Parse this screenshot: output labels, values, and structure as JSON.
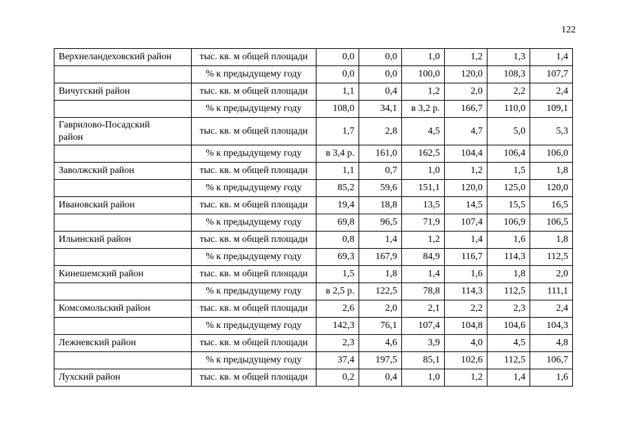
{
  "page_number": "122",
  "table": {
    "rows": [
      {
        "district": "Верхнеландеховский район",
        "measure": "тыс. кв. м общей площади",
        "values": [
          "0,0",
          "0,0",
          "1,0",
          "1,2",
          "1,3",
          "1,4"
        ]
      },
      {
        "district": "",
        "measure": "% к предыдущему году",
        "values": [
          "0,0",
          "0,0",
          "100,0",
          "120,0",
          "108,3",
          "107,7"
        ]
      },
      {
        "district": "Вичугский район",
        "measure": "тыс. кв. м общей площади",
        "values": [
          "1,1",
          "0,4",
          "1,2",
          "2,0",
          "2,2",
          "2,4"
        ]
      },
      {
        "district": "",
        "measure": "% к предыдущему году",
        "values": [
          "108,0",
          "34,1",
          "в 3,2 р.",
          "166,7",
          "110,0",
          "109,1"
        ]
      },
      {
        "district": "Гаврилово-Посадский\nрайон",
        "measure": "тыс. кв. м общей площади",
        "values": [
          "1,7",
          "2,8",
          "4,5",
          "4,7",
          "5,0",
          "5,3"
        ]
      },
      {
        "district": "",
        "measure": "% к предыдущему году",
        "values": [
          "в 3,4 р.",
          "161,0",
          "162,5",
          "104,4",
          "106,4",
          "106,0"
        ]
      },
      {
        "district": "Заволжский район",
        "measure": "тыс. кв. м общей площади",
        "values": [
          "1,1",
          "0,7",
          "1,0",
          "1,2",
          "1,5",
          "1,8"
        ]
      },
      {
        "district": "",
        "measure": "% к предыдущему году",
        "values": [
          "85,2",
          "59,6",
          "151,1",
          "120,0",
          "125,0",
          "120,0"
        ]
      },
      {
        "district": "Ивановский район",
        "measure": "тыс. кв. м общей площади",
        "values": [
          "19,4",
          "18,8",
          "13,5",
          "14,5",
          "15,5",
          "16,5"
        ]
      },
      {
        "district": "",
        "measure": "% к предыдущему году",
        "values": [
          "69,8",
          "96,5",
          "71,9",
          "107,4",
          "106,9",
          "106,5"
        ]
      },
      {
        "district": "Ильинский район",
        "measure": "тыс. кв. м общей площади",
        "values": [
          "0,8",
          "1,4",
          "1,2",
          "1,4",
          "1,6",
          "1,8"
        ]
      },
      {
        "district": "",
        "measure": "% к предыдущему году",
        "values": [
          "69,3",
          "167,9",
          "84,9",
          "116,7",
          "114,3",
          "112,5"
        ]
      },
      {
        "district": "Кинешемский район",
        "measure": "тыс. кв. м общей площади",
        "values": [
          "1,5",
          "1,8",
          "1,4",
          "1,6",
          "1,8",
          "2,0"
        ]
      },
      {
        "district": "",
        "measure": "% к предыдущему году",
        "values": [
          "в 2,5 р.",
          "122,5",
          "78,8",
          "114,3",
          "112,5",
          "111,1"
        ]
      },
      {
        "district": "Комсомольский район",
        "measure": "тыс. кв. м общей площади",
        "values": [
          "2,6",
          "2,0",
          "2,1",
          "2,2",
          "2,3",
          "2,4"
        ]
      },
      {
        "district": "",
        "measure": "% к предыдущему году",
        "values": [
          "142,3",
          "76,1",
          "107,4",
          "104,8",
          "104,6",
          "104,3"
        ]
      },
      {
        "district": "Лежневский район",
        "measure": "тыс. кв. м общей площади",
        "values": [
          "2,3",
          "4,6",
          "3,9",
          "4,0",
          "4,5",
          "4,8"
        ]
      },
      {
        "district": "",
        "measure": "% к предыдущему году",
        "values": [
          "37,4",
          "197,5",
          "85,1",
          "102,6",
          "112,5",
          "106,7"
        ]
      },
      {
        "district": "Лухский район",
        "measure": "тыс. кв. м общей площади",
        "values": [
          "0,2",
          "0,4",
          "1,0",
          "1,2",
          "1,4",
          "1,6"
        ]
      }
    ]
  }
}
